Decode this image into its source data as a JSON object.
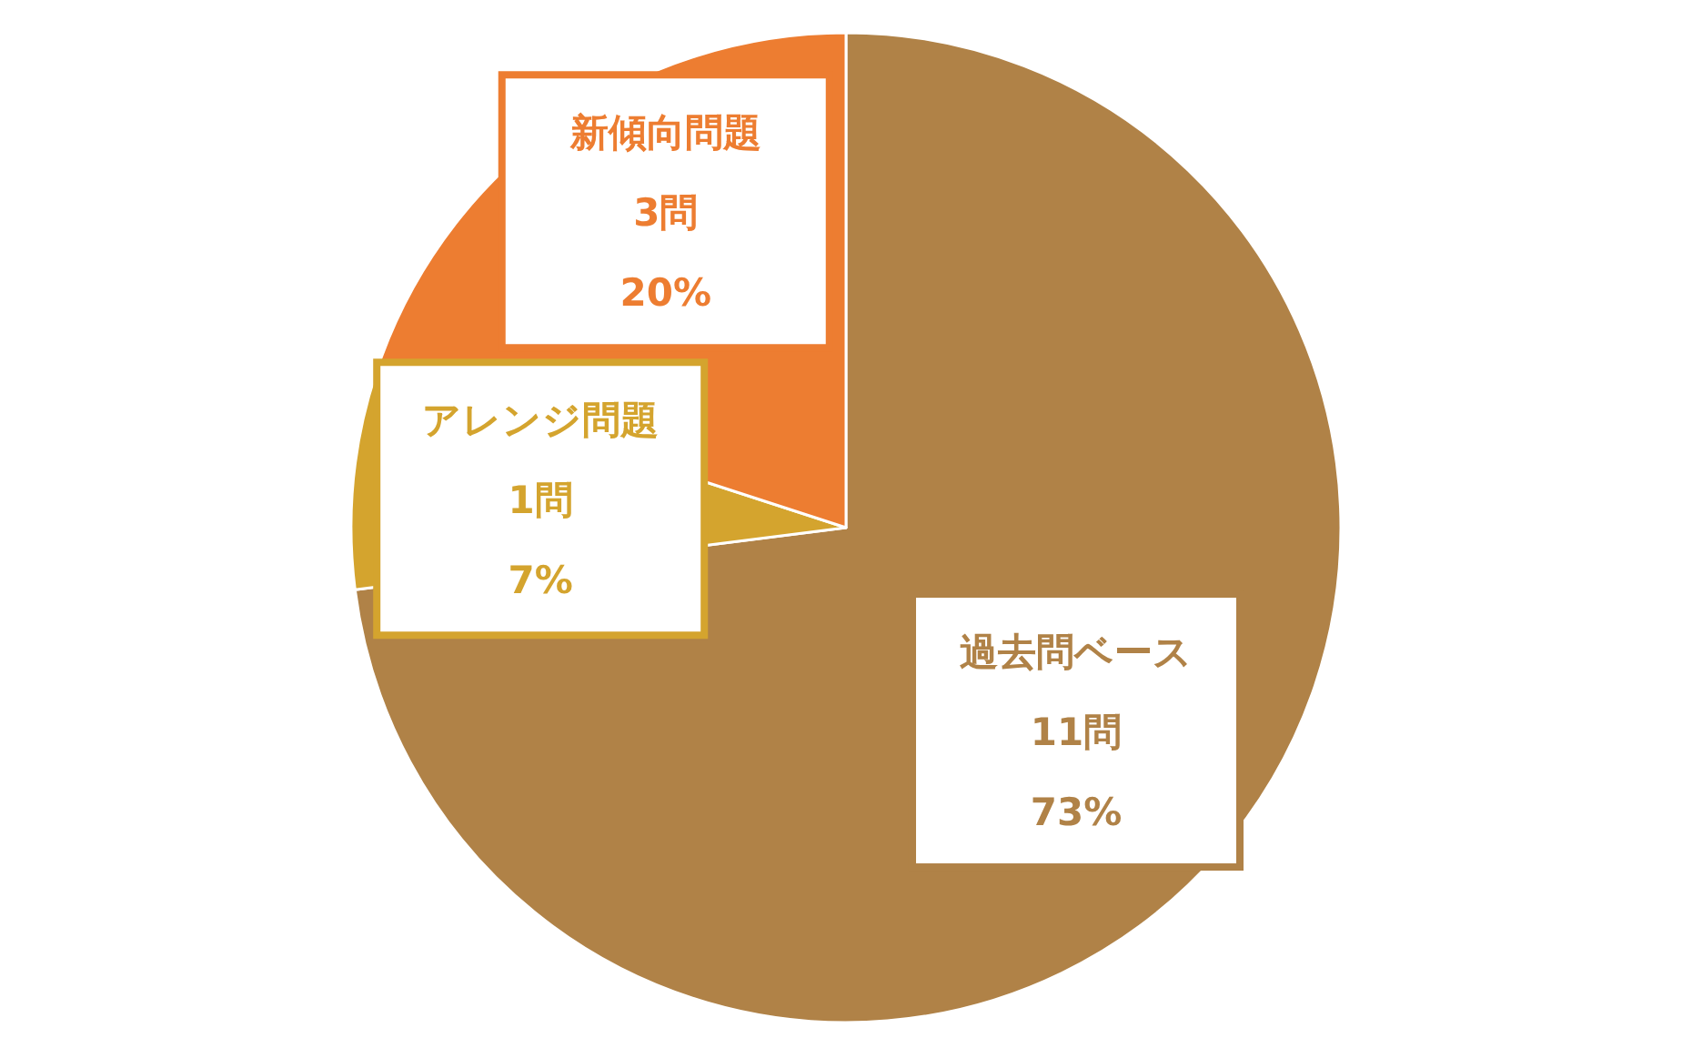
{
  "chart_data": {
    "type": "pie",
    "categories": [
      "過去問ベース",
      "アレンジ問題",
      "新傾向問題"
    ],
    "values": [
      73,
      7,
      20
    ],
    "value_labels": [
      "11問\n73%",
      "1問\n7%",
      "3問\n20%"
    ],
    "colors": [
      "#b08247",
      "#d4a42e",
      "#ed7d31"
    ]
  }
}
